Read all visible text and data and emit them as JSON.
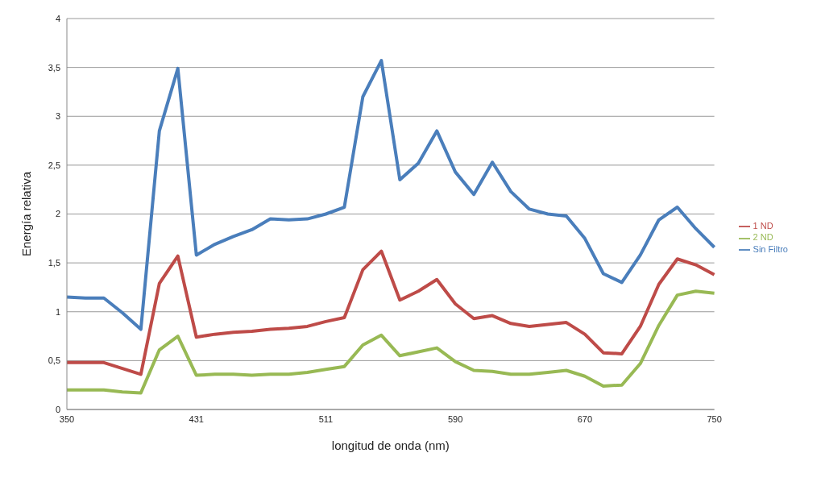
{
  "chart_data": {
    "type": "line",
    "xlabel": "longitud de onda (nm)",
    "ylabel": "Energía relativa",
    "categories": [
      "350",
      null,
      null,
      null,
      null,
      null,
      null,
      "431",
      null,
      null,
      null,
      null,
      null,
      null,
      "511",
      null,
      null,
      null,
      null,
      null,
      null,
      "590",
      null,
      null,
      null,
      null,
      null,
      null,
      "670",
      null,
      null,
      null,
      null,
      null,
      null,
      "750"
    ],
    "series": [
      {
        "name": "Sin Filtro",
        "color": "#4a7ebb",
        "values": [
          1.15,
          1.14,
          1.14,
          0.99,
          0.82,
          2.85,
          3.49,
          1.58,
          1.69,
          1.77,
          1.84,
          1.95,
          1.94,
          1.95,
          2.0,
          2.07,
          3.2,
          3.57,
          2.35,
          2.52,
          2.85,
          2.43,
          2.2,
          2.53,
          2.23,
          2.05,
          2.0,
          1.98,
          1.75,
          1.39,
          1.3,
          1.58,
          1.94,
          2.07,
          1.85,
          1.66
        ]
      },
      {
        "name": "1 ND",
        "color": "#be4b48",
        "values": [
          0.48,
          0.48,
          0.48,
          0.42,
          0.36,
          1.29,
          1.57,
          0.74,
          0.77,
          0.79,
          0.8,
          0.82,
          0.83,
          0.85,
          0.9,
          0.94,
          1.43,
          1.62,
          1.12,
          1.21,
          1.33,
          1.08,
          0.93,
          0.96,
          0.88,
          0.85,
          0.87,
          0.89,
          0.77,
          0.58,
          0.57,
          0.85,
          1.28,
          1.54,
          1.48,
          1.38
        ]
      },
      {
        "name": "2 ND",
        "color": "#98b954",
        "values": [
          0.2,
          0.2,
          0.2,
          0.18,
          0.17,
          0.61,
          0.75,
          0.35,
          0.36,
          0.36,
          0.35,
          0.36,
          0.36,
          0.38,
          0.41,
          0.44,
          0.66,
          0.76,
          0.55,
          0.59,
          0.63,
          0.49,
          0.4,
          0.39,
          0.36,
          0.36,
          0.38,
          0.4,
          0.34,
          0.24,
          0.25,
          0.47,
          0.86,
          1.17,
          1.21,
          1.19
        ]
      }
    ],
    "ylim": [
      0,
      4
    ],
    "yticks": [
      0,
      {
        "value": 0.5,
        "label": "0,5"
      },
      1,
      {
        "value": 1.5,
        "label": "1,5"
      },
      2,
      {
        "value": 2.5,
        "label": "2,5"
      },
      3,
      {
        "value": 3.5,
        "label": "3,5"
      },
      4
    ],
    "grid": "y",
    "legend": "right",
    "marker": "none",
    "line_style": "solid"
  }
}
